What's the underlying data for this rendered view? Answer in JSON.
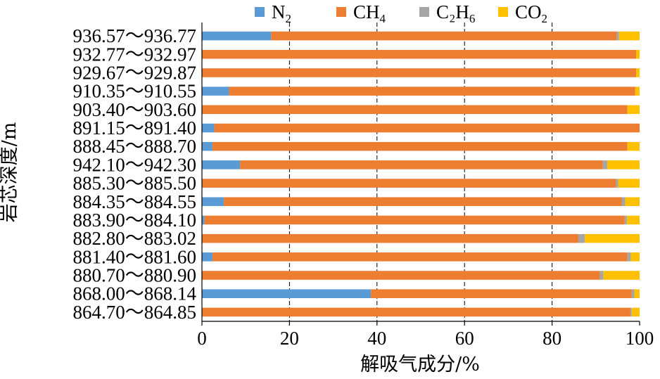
{
  "chart_data": {
    "type": "bar",
    "orientation": "horizontal",
    "stacked": true,
    "xlabel": "解吸气成分/%",
    "ylabel": "岩芯深度/m",
    "xlim": [
      0,
      100
    ],
    "xticks": [
      "0",
      "20",
      "40",
      "60",
      "80",
      "100"
    ],
    "grid": "vertical",
    "legend_position": "top",
    "categories": [
      "936.57～936.77",
      "932.77～932.97",
      "929.67～929.87",
      "910.35～910.55",
      "903.40～903.60",
      "891.15～891.40",
      "888.45～888.70",
      "942.10～942.30",
      "885.30～885.50",
      "884.35～884.55",
      "883.90～884.10",
      "882.80～883.02",
      "881.40～881.60",
      "880.70～880.90",
      "868.00～868.14",
      "864.70～864.85"
    ],
    "series": [
      {
        "name": "N₂",
        "base": "N",
        "sub": "2",
        "color": "#5B9BD5",
        "values": [
          15.8,
          0,
          0,
          6.2,
          0,
          2.8,
          2.4,
          8.7,
          0,
          5.0,
          0.6,
          0,
          2.4,
          0,
          38.6,
          0
        ]
      },
      {
        "name": "CH₄",
        "base": "CH",
        "sub": "4",
        "color": "#ED7D31",
        "values": [
          79.0,
          99.2,
          99.2,
          92.8,
          97.2,
          97.2,
          94.8,
          82.9,
          94.6,
          90.9,
          96.0,
          86.0,
          94.8,
          90.9,
          59.6,
          97.9
        ]
      },
      {
        "name": "C₂H₆",
        "base": "C₂H",
        "sub": "6",
        "color": "#A5A5A5",
        "values": [
          0.5,
          0,
          0,
          0,
          0,
          0,
          0,
          1.0,
          0.5,
          0.8,
          0.5,
          1.5,
          0.8,
          0.8,
          0.6,
          0.3
        ]
      },
      {
        "name": "CO₂",
        "base": "CO",
        "sub": "2",
        "color": "#FFC000",
        "values": [
          4.7,
          0.8,
          0.8,
          1.0,
          2.8,
          0,
          2.8,
          7.4,
          4.9,
          3.3,
          2.9,
          12.5,
          2.0,
          8.3,
          1.2,
          1.8
        ]
      }
    ]
  }
}
